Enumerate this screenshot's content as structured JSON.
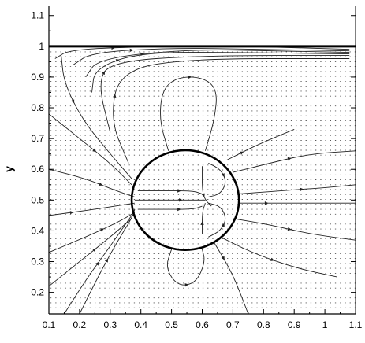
{
  "chart_data": {
    "type": "vector-field-streamlines",
    "title": "",
    "xlabel": "",
    "ylabel": "y",
    "xlim": [
      0.1,
      1.1
    ],
    "ylim": [
      0.13,
      1.13
    ],
    "xticks": [
      0.1,
      0.2,
      0.3,
      0.4,
      0.5,
      0.6,
      0.7,
      0.8,
      0.9,
      1,
      1.1
    ],
    "xtick_labels": [
      "0.1",
      "0.2",
      "0.3",
      "0.4",
      "0.5",
      "0.6",
      "0.7",
      "0.8",
      "0.9",
      "1",
      "1.1"
    ],
    "yticks": [
      0.2,
      0.3,
      0.4,
      0.5,
      0.6,
      0.7,
      0.8,
      0.9,
      1,
      1.1
    ],
    "ytick_labels": [
      "0.2",
      "0.3",
      "0.4",
      "0.5",
      "0.6",
      "0.7",
      "0.8",
      "0.9",
      "1",
      "1.1"
    ],
    "grid": false,
    "legend": "none",
    "wall": {
      "y": 1.0
    },
    "drop": {
      "cx": 0.545,
      "cy": 0.5,
      "rx": 0.175,
      "ry": 0.162
    },
    "streamlines": [
      [
        [
          0.2,
          0.13
        ],
        [
          0.26,
          0.25
        ],
        [
          0.32,
          0.36
        ],
        [
          0.37,
          0.44
        ],
        [
          0.38,
          0.47
        ]
      ],
      [
        [
          0.15,
          0.13
        ],
        [
          0.22,
          0.24
        ],
        [
          0.3,
          0.35
        ],
        [
          0.37,
          0.45
        ]
      ],
      [
        [
          0.1,
          0.22
        ],
        [
          0.2,
          0.3
        ],
        [
          0.3,
          0.38
        ],
        [
          0.37,
          0.44
        ]
      ],
      [
        [
          0.1,
          0.33
        ],
        [
          0.22,
          0.38
        ],
        [
          0.33,
          0.43
        ],
        [
          0.38,
          0.46
        ]
      ],
      [
        [
          0.1,
          0.45
        ],
        [
          0.25,
          0.47
        ],
        [
          0.38,
          0.49
        ]
      ],
      [
        [
          0.1,
          0.6
        ],
        [
          0.22,
          0.57
        ],
        [
          0.32,
          0.53
        ],
        [
          0.38,
          0.51
        ]
      ],
      [
        [
          0.1,
          0.78
        ],
        [
          0.2,
          0.7
        ],
        [
          0.3,
          0.62
        ],
        [
          0.37,
          0.55
        ]
      ],
      [
        [
          0.14,
          0.97
        ],
        [
          0.15,
          0.88
        ],
        [
          0.21,
          0.76
        ],
        [
          0.3,
          0.65
        ],
        [
          0.37,
          0.57
        ]
      ],
      [
        [
          0.12,
          0.96
        ],
        [
          0.17,
          0.99
        ],
        [
          0.45,
          1.0
        ],
        [
          0.75,
          1.0
        ],
        [
          1.08,
          0.99
        ]
      ],
      [
        [
          0.18,
          0.94
        ],
        [
          0.24,
          0.98
        ],
        [
          0.5,
          0.995
        ],
        [
          0.8,
          0.99
        ],
        [
          1.08,
          0.985
        ]
      ],
      [
        [
          0.22,
          0.9
        ],
        [
          0.26,
          0.96
        ],
        [
          0.55,
          0.99
        ],
        [
          0.85,
          0.985
        ],
        [
          1.08,
          0.98
        ]
      ],
      [
        [
          0.24,
          0.85
        ],
        [
          0.25,
          0.93
        ],
        [
          0.4,
          0.98
        ],
        [
          0.7,
          0.98
        ],
        [
          1.08,
          0.975
        ]
      ],
      [
        [
          0.3,
          0.72
        ],
        [
          0.26,
          0.88
        ],
        [
          0.3,
          0.95
        ],
        [
          0.6,
          0.97
        ],
        [
          1.08,
          0.97
        ]
      ],
      [
        [
          0.36,
          0.62
        ],
        [
          0.3,
          0.76
        ],
        [
          0.33,
          0.92
        ],
        [
          0.55,
          0.96
        ],
        [
          1.08,
          0.96
        ]
      ],
      [
        [
          0.49,
          0.66
        ],
        [
          0.46,
          0.76
        ],
        [
          0.47,
          0.86
        ],
        [
          0.52,
          0.9
        ],
        [
          0.6,
          0.9
        ],
        [
          0.65,
          0.86
        ],
        [
          0.64,
          0.76
        ],
        [
          0.61,
          0.66
        ]
      ],
      [
        [
          0.5,
          0.34
        ],
        [
          0.48,
          0.28
        ],
        [
          0.52,
          0.22
        ],
        [
          0.58,
          0.23
        ],
        [
          0.61,
          0.3
        ],
        [
          0.6,
          0.34
        ]
      ],
      [
        [
          0.72,
          0.52
        ],
        [
          0.85,
          0.53
        ],
        [
          1.0,
          0.54
        ],
        [
          1.1,
          0.55
        ]
      ],
      [
        [
          0.72,
          0.49
        ],
        [
          0.9,
          0.49
        ],
        [
          1.1,
          0.49
        ]
      ],
      [
        [
          0.7,
          0.44
        ],
        [
          0.82,
          0.42
        ],
        [
          0.95,
          0.39
        ],
        [
          1.1,
          0.37
        ]
      ],
      [
        [
          0.66,
          0.38
        ],
        [
          0.76,
          0.33
        ],
        [
          0.9,
          0.28
        ],
        [
          1.04,
          0.25
        ]
      ],
      [
        [
          0.64,
          0.36
        ],
        [
          0.7,
          0.26
        ],
        [
          0.75,
          0.13
        ]
      ],
      [
        [
          0.7,
          0.59
        ],
        [
          0.82,
          0.62
        ],
        [
          0.95,
          0.65
        ],
        [
          1.1,
          0.66
        ]
      ],
      [
        [
          0.68,
          0.63
        ],
        [
          0.78,
          0.68
        ],
        [
          0.9,
          0.73
        ]
      ],
      [
        [
          0.6,
          0.61
        ],
        [
          0.6,
          0.53
        ],
        [
          0.61,
          0.5
        ],
        [
          0.63,
          0.48
        ]
      ],
      [
        [
          0.6,
          0.39
        ],
        [
          0.6,
          0.46
        ],
        [
          0.61,
          0.49
        ]
      ],
      [
        [
          0.38,
          0.5
        ],
        [
          0.48,
          0.5
        ],
        [
          0.58,
          0.5
        ],
        [
          0.61,
          0.5
        ]
      ],
      [
        [
          0.39,
          0.53
        ],
        [
          0.48,
          0.53
        ],
        [
          0.57,
          0.53
        ],
        [
          0.6,
          0.52
        ]
      ],
      [
        [
          0.39,
          0.47
        ],
        [
          0.48,
          0.47
        ],
        [
          0.57,
          0.47
        ],
        [
          0.6,
          0.48
        ]
      ],
      [
        [
          0.62,
          0.62
        ],
        [
          0.66,
          0.6
        ],
        [
          0.68,
          0.56
        ],
        [
          0.66,
          0.52
        ],
        [
          0.62,
          0.51
        ]
      ],
      [
        [
          0.62,
          0.38
        ],
        [
          0.66,
          0.4
        ],
        [
          0.68,
          0.44
        ],
        [
          0.66,
          0.48
        ],
        [
          0.62,
          0.49
        ]
      ]
    ]
  }
}
